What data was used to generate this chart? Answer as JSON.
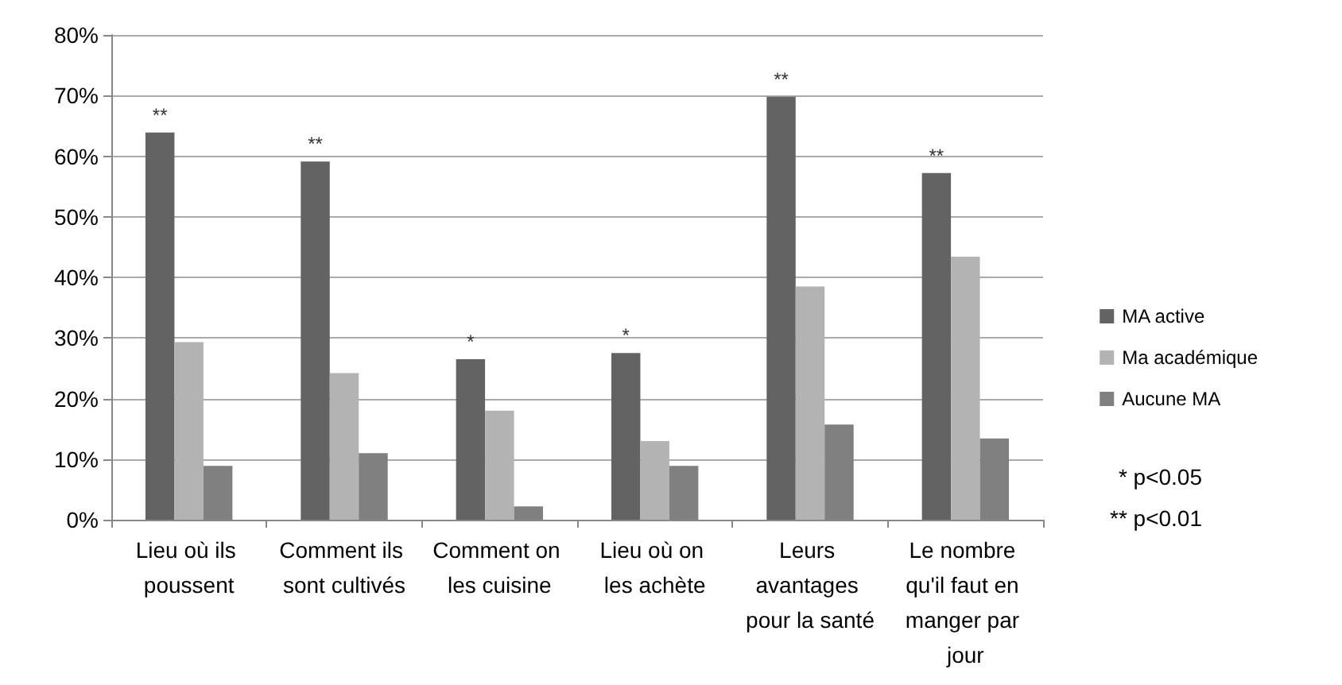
{
  "chart_data": {
    "type": "bar",
    "categories": [
      "Lieu où ils poussent",
      "Comment ils sont cultivés",
      "Comment on les cuisine",
      "Lieu où on les achète",
      "Leurs avantages pour la santé",
      "Le nombre qu'il faut en manger par jour"
    ],
    "series": [
      {
        "name": "MA active",
        "color": "#636363",
        "values": [
          63.9,
          59.1,
          26.5,
          27.5,
          69.8,
          57.2
        ],
        "value_labels": [
          "**",
          "**",
          "*",
          "*",
          "**",
          "**"
        ]
      },
      {
        "name": "Ma académique",
        "color": "#b3b3b3",
        "values": [
          29.3,
          24.2,
          18,
          13,
          38.5,
          43.4
        ]
      },
      {
        "name": "Aucune MA",
        "color": "#808080",
        "values": [
          8.9,
          11,
          2.2,
          8.9,
          15.7,
          13.4
        ]
      }
    ],
    "ylim": [
      0,
      80
    ],
    "yticks": [
      {
        "value": 0,
        "label": "0%"
      },
      {
        "value": 10,
        "label": "10%"
      },
      {
        "value": 20,
        "label": "20%"
      },
      {
        "value": 30,
        "label": "30%"
      },
      {
        "value": 40,
        "label": "40%"
      },
      {
        "value": 50,
        "label": "50%"
      },
      {
        "value": 60,
        "label": "60%"
      },
      {
        "value": 70,
        "label": "70%"
      },
      {
        "value": 80,
        "label": "80%"
      }
    ],
    "grid": "y",
    "legend": "right",
    "annotations": [
      "* p<0.05",
      "** p<0.01"
    ]
  }
}
